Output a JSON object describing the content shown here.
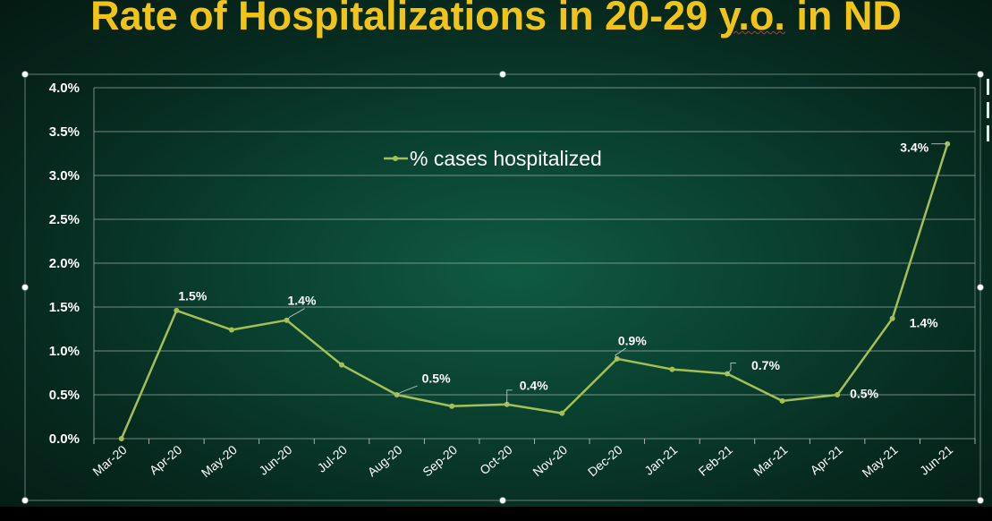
{
  "title_parts": [
    "Rate of Hospitalizations in 20-29 ",
    "y.o.",
    " in ND"
  ],
  "colors": {
    "title": "#f2c418",
    "line": "#a3c055",
    "text": "#ffffff",
    "grid": "#c8d2cd"
  },
  "chart_data": {
    "type": "line",
    "title": "Rate of Hospitalizations in 20-29 y.o. in ND",
    "xlabel": "",
    "ylabel": "",
    "categories": [
      "Mar-20",
      "Apr-20",
      "May-20",
      "Jun-20",
      "Jul-20",
      "Aug-20",
      "Sep-20",
      "Oct-20",
      "Nov-20",
      "Dec-20",
      "Jan-21",
      "Feb-21",
      "Mar-21",
      "Apr-21",
      "May-21",
      "Jun-21"
    ],
    "series": [
      {
        "name": "% cases hospitalized",
        "values": [
          0.0,
          1.46,
          1.24,
          1.35,
          0.84,
          0.5,
          0.37,
          0.39,
          0.29,
          0.91,
          0.79,
          0.74,
          0.43,
          0.5,
          1.37,
          3.36
        ]
      }
    ],
    "ylim": [
      0,
      4.0
    ],
    "yticks": [
      "0.0%",
      "0.5%",
      "1.0%",
      "1.5%",
      "2.0%",
      "2.5%",
      "3.0%",
      "3.5%",
      "4.0%"
    ],
    "grid": true,
    "legend": "top-center",
    "data_labels": [
      {
        "index": 1,
        "text": "1.5%"
      },
      {
        "index": 3,
        "text": "1.4%"
      },
      {
        "index": 5,
        "text": "0.5%"
      },
      {
        "index": 7,
        "text": "0.4%"
      },
      {
        "index": 9,
        "text": "0.9%"
      },
      {
        "index": 11,
        "text": "0.7%"
      },
      {
        "index": 13,
        "text": "0.5%"
      },
      {
        "index": 14,
        "text": "1.4%"
      },
      {
        "index": 15,
        "text": "3.4%"
      }
    ]
  }
}
